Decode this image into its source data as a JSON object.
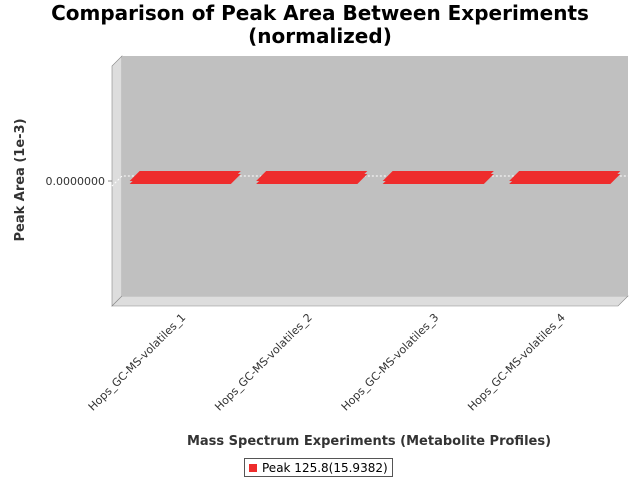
{
  "chart_data": {
    "type": "bar",
    "title": [
      "Comparison of Peak Area Between Experiments",
      "(normalized)"
    ],
    "xlabel": "Mass Spectrum Experiments (Metabolite Profiles)",
    "ylabel": "Peak Area (1e-3)",
    "categories": [
      "Hops_GC-MS-volatiles_1",
      "Hops_GC-MS-volatiles_2",
      "Hops_GC-MS-volatiles_3",
      "Hops_GC-MS-volatiles_4"
    ],
    "series": [
      {
        "name": "Peak 125.8(15.9382)",
        "values": [
          0,
          0,
          0,
          0
        ],
        "color": "#ee2c2c"
      }
    ],
    "y_ticks": [
      0
    ],
    "y_tick_labels": [
      "0.0000000"
    ],
    "ylim": [
      -1,
      1
    ],
    "grid": "horizontal",
    "legend_position": "bottom",
    "style": "3d",
    "plot_background": "#c0c0c0"
  }
}
